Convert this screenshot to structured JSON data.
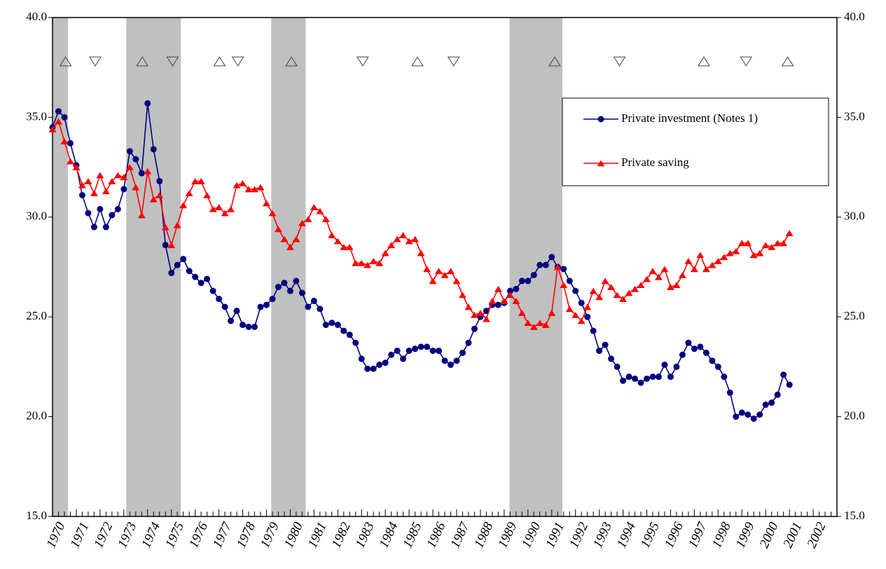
{
  "chart_data": {
    "type": "line",
    "categories": [
      "1970",
      null,
      null,
      null,
      "1971",
      null,
      null,
      null,
      "1972",
      null,
      null,
      null,
      "1973",
      null,
      null,
      null,
      "1974",
      null,
      null,
      null,
      "1975",
      null,
      null,
      null,
      "1976",
      null,
      null,
      null,
      "1977",
      null,
      null,
      null,
      "1978",
      null,
      null,
      null,
      "1979",
      null,
      null,
      null,
      "1980",
      null,
      null,
      null,
      "1981",
      null,
      null,
      null,
      "1982",
      null,
      null,
      null,
      "1983",
      null,
      null,
      null,
      "1984",
      null,
      null,
      null,
      "1985",
      null,
      null,
      null,
      "1986",
      null,
      null,
      null,
      "1987",
      null,
      null,
      null,
      "1988",
      null,
      null,
      null,
      "1989",
      null,
      null,
      null,
      "1990",
      null,
      null,
      null,
      "1991",
      null,
      null,
      null,
      "1992",
      null,
      null,
      null,
      "1993",
      null,
      null,
      null,
      "1994",
      null,
      null,
      null,
      "1995",
      null,
      null,
      null,
      "1996",
      null,
      null,
      null,
      "1997",
      null,
      null,
      null,
      "1998",
      null,
      null,
      null,
      "1999",
      null,
      null,
      null,
      "2000",
      null,
      null,
      null,
      "2001",
      null,
      null,
      null,
      "2002",
      null,
      null,
      null
    ],
    "series": [
      {
        "name": "Private investment (Notes 1)",
        "color": "#000080",
        "marker": "circle",
        "values": [
          34.5,
          35.3,
          35.0,
          33.7,
          32.6,
          31.1,
          30.2,
          29.5,
          30.4,
          29.5,
          30.1,
          30.4,
          31.4,
          33.3,
          32.9,
          32.2,
          35.7,
          33.4,
          31.8,
          28.6,
          27.2,
          27.6,
          27.9,
          27.3,
          27.0,
          26.7,
          26.9,
          26.3,
          25.9,
          25.5,
          24.8,
          25.3,
          24.6,
          24.5,
          24.5,
          25.5,
          25.6,
          25.9,
          26.5,
          26.7,
          26.3,
          26.8,
          26.2,
          25.5,
          25.8,
          25.4,
          24.6,
          24.7,
          24.6,
          24.3,
          24.1,
          23.7,
          22.9,
          22.4,
          22.4,
          22.6,
          22.7,
          23.1,
          23.3,
          22.9,
          23.3,
          23.4,
          23.5,
          23.5,
          23.3,
          23.3,
          22.8,
          22.6,
          22.8,
          23.2,
          23.7,
          24.4,
          25.0,
          25.3,
          25.6,
          25.6,
          25.7,
          26.3,
          26.4,
          26.8,
          26.8,
          27.1,
          27.6,
          27.6,
          28.0,
          27.5,
          27.4,
          26.8,
          26.3,
          25.7,
          25.0,
          24.3,
          23.3,
          23.6,
          22.9,
          22.5,
          21.8,
          22.0,
          21.9,
          21.7,
          21.9,
          22.0,
          22.0,
          22.6,
          22.0,
          22.5,
          23.1,
          23.7,
          23.4,
          23.5,
          23.2,
          22.8,
          22.5,
          22.0,
          21.2,
          20.0,
          20.2,
          20.1,
          19.9,
          20.1,
          20.6,
          20.7,
          21.1,
          22.1,
          21.6,
          null,
          null,
          null,
          null,
          null,
          null,
          null
        ]
      },
      {
        "name": "Private saving",
        "color": "#ff0000",
        "marker": "triangle",
        "values": [
          34.4,
          34.8,
          33.8,
          32.8,
          32.5,
          31.6,
          31.8,
          31.2,
          32.1,
          31.3,
          31.8,
          32.1,
          32.0,
          32.5,
          31.5,
          30.1,
          32.3,
          30.9,
          31.1,
          29.5,
          28.6,
          29.6,
          30.6,
          31.2,
          31.8,
          31.8,
          31.1,
          30.4,
          30.5,
          30.2,
          30.4,
          31.6,
          31.7,
          31.4,
          31.4,
          31.5,
          30.7,
          30.2,
          29.4,
          28.9,
          28.5,
          28.9,
          29.7,
          29.9,
          30.5,
          30.3,
          29.9,
          29.1,
          28.8,
          28.5,
          28.5,
          27.7,
          27.7,
          27.6,
          27.8,
          27.7,
          28.2,
          28.6,
          28.9,
          29.1,
          28.8,
          28.9,
          28.2,
          27.4,
          26.8,
          27.3,
          27.1,
          27.3,
          26.8,
          26.1,
          25.5,
          25.1,
          25.2,
          24.9,
          25.8,
          26.4,
          25.8,
          26.1,
          25.8,
          25.2,
          24.7,
          24.5,
          24.7,
          24.6,
          25.2,
          27.5,
          26.6,
          25.4,
          25.1,
          24.8,
          25.5,
          26.3,
          26.0,
          26.8,
          26.5,
          26.1,
          25.9,
          26.2,
          26.4,
          26.6,
          26.9,
          27.3,
          27.0,
          27.4,
          26.5,
          26.6,
          27.1,
          27.8,
          27.4,
          28.1,
          27.4,
          27.6,
          27.8,
          28.0,
          28.2,
          28.3,
          28.7,
          28.7,
          28.1,
          28.2,
          28.6,
          28.5,
          28.7,
          28.7,
          29.2,
          null,
          null,
          null,
          null,
          null,
          null,
          null
        ]
      }
    ],
    "ylim": [
      15,
      40
    ],
    "yticks": [
      {
        "value": 15,
        "label": "15.0"
      },
      {
        "value": 20,
        "label": "20.0"
      },
      {
        "value": 25,
        "label": "25.0"
      },
      {
        "value": 30,
        "label": "30.0"
      },
      {
        "value": 35,
        "label": "35.0"
      },
      {
        "value": 40,
        "label": "40.0"
      }
    ],
    "y2lim": [
      15,
      40
    ],
    "y2ticks": [
      {
        "value": 15,
        "label": "15.0"
      },
      {
        "value": 20,
        "label": "20.0"
      },
      {
        "value": 25,
        "label": "25.0"
      },
      {
        "value": 30,
        "label": "30.0"
      },
      {
        "value": 35,
        "label": "35.0"
      },
      {
        "value": 40,
        "label": "40.0"
      }
    ],
    "shaded_ranges": [
      [
        0,
        2.6
      ],
      [
        12.4,
        21.6
      ],
      [
        36.8,
        42.6
      ],
      [
        76.9,
        85.8
      ]
    ],
    "shade_color": "#c0c0c0",
    "turning_points": {
      "y": 37.8,
      "up": [
        2.2,
        15.1,
        28.1,
        40.2,
        61.4,
        84.5,
        109.6,
        123.7
      ],
      "down": [
        7.2,
        20.2,
        31.2,
        52.2,
        67.5,
        95.4,
        116.7
      ]
    },
    "legend": "upper right"
  }
}
